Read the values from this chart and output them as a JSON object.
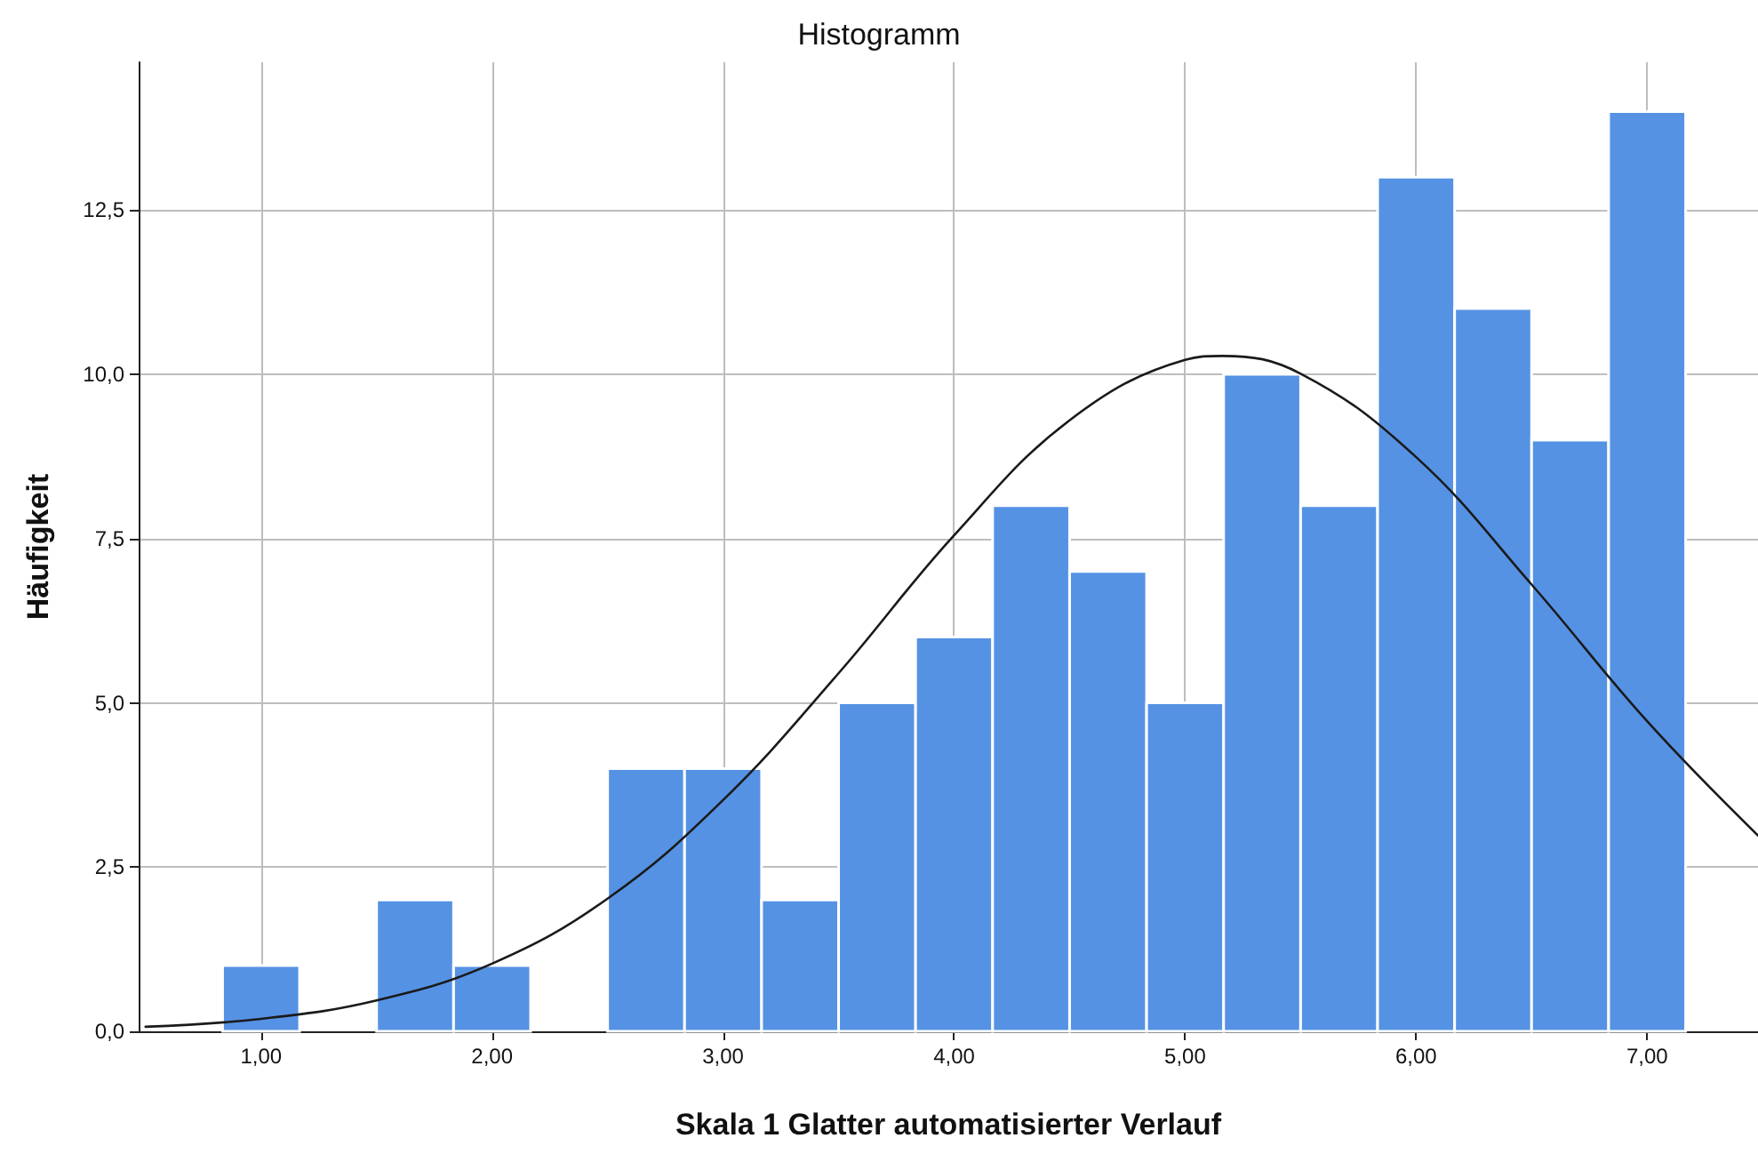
{
  "chart_data": {
    "type": "histogram",
    "title": "Histogramm",
    "xlabel": "Skala 1 Glatter automatisierter Verlauf",
    "ylabel": "Häufigkeit",
    "bins": [
      0.8333,
      1.1667,
      1.5,
      1.8333,
      2.1667,
      2.5,
      2.8333,
      3.1667,
      3.5,
      3.8333,
      4.1667,
      4.5,
      4.8333,
      5.1667,
      5.5,
      5.8333,
      6.1667,
      6.5,
      6.8333,
      7.1667
    ],
    "values": [
      1,
      0,
      2,
      1,
      0,
      4,
      4,
      2,
      5,
      6,
      8,
      7,
      5,
      10,
      8,
      13,
      11,
      9,
      14
    ],
    "color": "#5592e4",
    "series": [
      {
        "type": "line",
        "color": "#1a1a1a",
        "x": [
          0.5,
          1.0,
          1.5,
          2.0,
          2.5,
          3.0,
          3.5,
          4.0,
          4.5,
          5.0,
          5.16,
          5.5,
          6.0,
          6.5,
          7.0,
          7.48
        ],
        "values": [
          0.07,
          0.19,
          0.47,
          1.03,
          2.02,
          3.52,
          5.45,
          7.55,
          9.3,
          10.22,
          10.28,
          10.01,
          8.74,
          6.8,
          4.72,
          2.98
        ]
      }
    ],
    "xlim": [
      0.47,
      7.48
    ],
    "xticks": [
      {
        "value": 1,
        "label": "1,00"
      },
      {
        "value": 2,
        "label": "2,00"
      },
      {
        "value": 3,
        "label": "3,00"
      },
      {
        "value": 4,
        "label": "4,00"
      },
      {
        "value": 5,
        "label": "5,00"
      },
      {
        "value": 6,
        "label": "6,00"
      },
      {
        "value": 7,
        "label": "7,00"
      }
    ],
    "ylim": [
      0,
      14.75
    ],
    "yticks": [
      {
        "value": 0,
        "label": "0,0"
      },
      {
        "value": 2.5,
        "label": "2,5"
      },
      {
        "value": 5,
        "label": "5,0"
      },
      {
        "value": 7.5,
        "label": "7,5"
      },
      {
        "value": 10,
        "label": "10,0"
      },
      {
        "value": 12.5,
        "label": "12,5"
      }
    ],
    "grid": true,
    "marker": "none",
    "line_style": "solid"
  }
}
